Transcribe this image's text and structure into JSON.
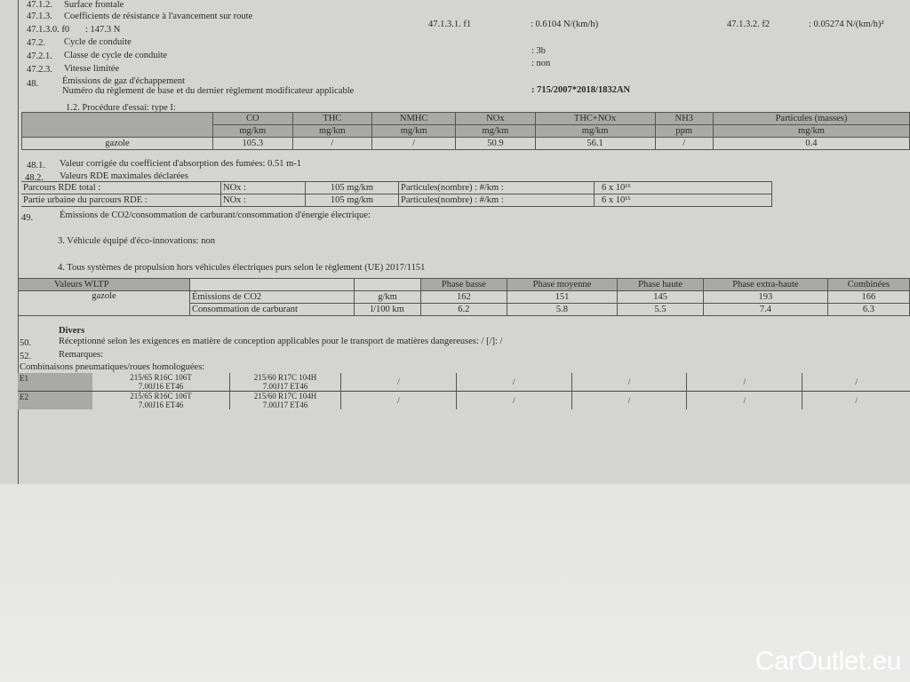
{
  "lines": [
    {
      "num": "47.1.2.",
      "label": "Surface frontale"
    },
    {
      "num": "47.1.3.",
      "label": "Coefficients de résistance à l'avancement sur route"
    },
    {
      "num": "47.1.3.0. f0",
      "label": ": 147.3 N"
    },
    {
      "num": "47.2.",
      "label": "Cycle de conduite"
    },
    {
      "num": "47.2.1.",
      "label": "Classe de cycle de conduite",
      "value": ": 3b"
    },
    {
      "num": "47.2.3.",
      "label": "Vitesse limitée",
      "value": ": non"
    },
    {
      "num": "48.",
      "label": "Émissions de gaz d'échappement"
    }
  ],
  "f1": {
    "label": "47.1.3.1. f1",
    "value": ": 0.6104 N/(km/h)"
  },
  "f2": {
    "label": "47.1.3.2. f2",
    "value": ": 0.05274 N/(km/h)²"
  },
  "reglement": {
    "label": "Numéro du règlement de base et du dernier règlement modificateur applicable",
    "value": ": 715/2007*2018/1832AN"
  },
  "procedure": "1.2. Procédure d'essai: type I:",
  "type1": {
    "headers": [
      [
        "CO",
        "mg/km"
      ],
      [
        "THC",
        "mg/km"
      ],
      [
        "NMHC",
        "mg/km"
      ],
      [
        "NOx",
        "mg/km"
      ],
      [
        "THC+NOx",
        "mg/km"
      ],
      [
        "NH3",
        "ppm"
      ],
      [
        "Particules (masses)",
        "mg/km"
      ]
    ],
    "row": {
      "fuel": "gazole",
      "values": [
        "105.3",
        "/",
        "/",
        "50.9",
        "56.1",
        "/",
        "0.4"
      ]
    }
  },
  "l481": {
    "num": "48.1.",
    "label": "Valeur corrigée du coefficient d'absorption des fumées: 0.51 m-1"
  },
  "l482": {
    "num": "48.2.",
    "label": "Valeurs RDE maximales déclarées"
  },
  "rde": [
    {
      "label": "Parcours RDE total :",
      "nox": "NOx :",
      "nox_val": "105 mg/km",
      "pn": "Particules(nombre) : #/km :",
      "pn_val": "6 x 10¹¹"
    },
    {
      "label": "Partie urbaine du parcours RDE     :",
      "nox": "NOx :",
      "nox_val": "105 mg/km",
      "pn": "Particules(nombre) : #/km :",
      "pn_val": "6 x 10¹¹"
    }
  ],
  "l49": {
    "num": "49.",
    "label": "Émissions de CO2/consommation de carburant/consommation d'énergie électrique:"
  },
  "eco": "3. Véhicule équipé d'éco-innovations: non",
  "systemes": "4. Tous systèmes de propulsion hors véhicules électriques purs selon le règlement (UE) 2017/1151",
  "wltp": {
    "title": "Valeurs WLTP",
    "phases": [
      "Phase basse",
      "Phase moyenne",
      "Phase haute",
      "Phase extra-haute",
      "Combinées"
    ],
    "fuel": "gazole",
    "rows": [
      {
        "label": "Émissions de CO2",
        "unit": "g/km",
        "values": [
          "162",
          "151",
          "145",
          "193",
          "166"
        ]
      },
      {
        "label": "Consommation de carburant",
        "unit": "l/100 km",
        "values": [
          "6.2",
          "5.8",
          "5.5",
          "7.4",
          "6.3"
        ]
      }
    ]
  },
  "divers": "Divers",
  "l50": {
    "num": "50.",
    "label": "Réceptionné selon les exigences en matière de conception applicables pour le transport de matières dangereuses: / [/]: /"
  },
  "l52": {
    "num": "52.",
    "label": "Remarques:"
  },
  "tyres_title": "Combinaisons pneumatiques/roues homologuées:",
  "tyres": [
    {
      "id": "E1",
      "a1": "215/65 R16C 106T",
      "a2": "7.00J16 ET46",
      "b1": "215/60 R17C 104H",
      "b2": "7.00J17 ET46",
      "rest": [
        "/",
        "/",
        "/",
        "/",
        "/"
      ]
    },
    {
      "id": "E2",
      "a1": "215/65 R16C 106T",
      "a2": "7.00J16 ET46",
      "b1": "215/60 R17C 104H",
      "b2": "7.00J17 ET46",
      "rest": [
        "/",
        "/",
        "/",
        "/",
        "/"
      ]
    }
  ],
  "watermark": "CarOutlet.eu"
}
